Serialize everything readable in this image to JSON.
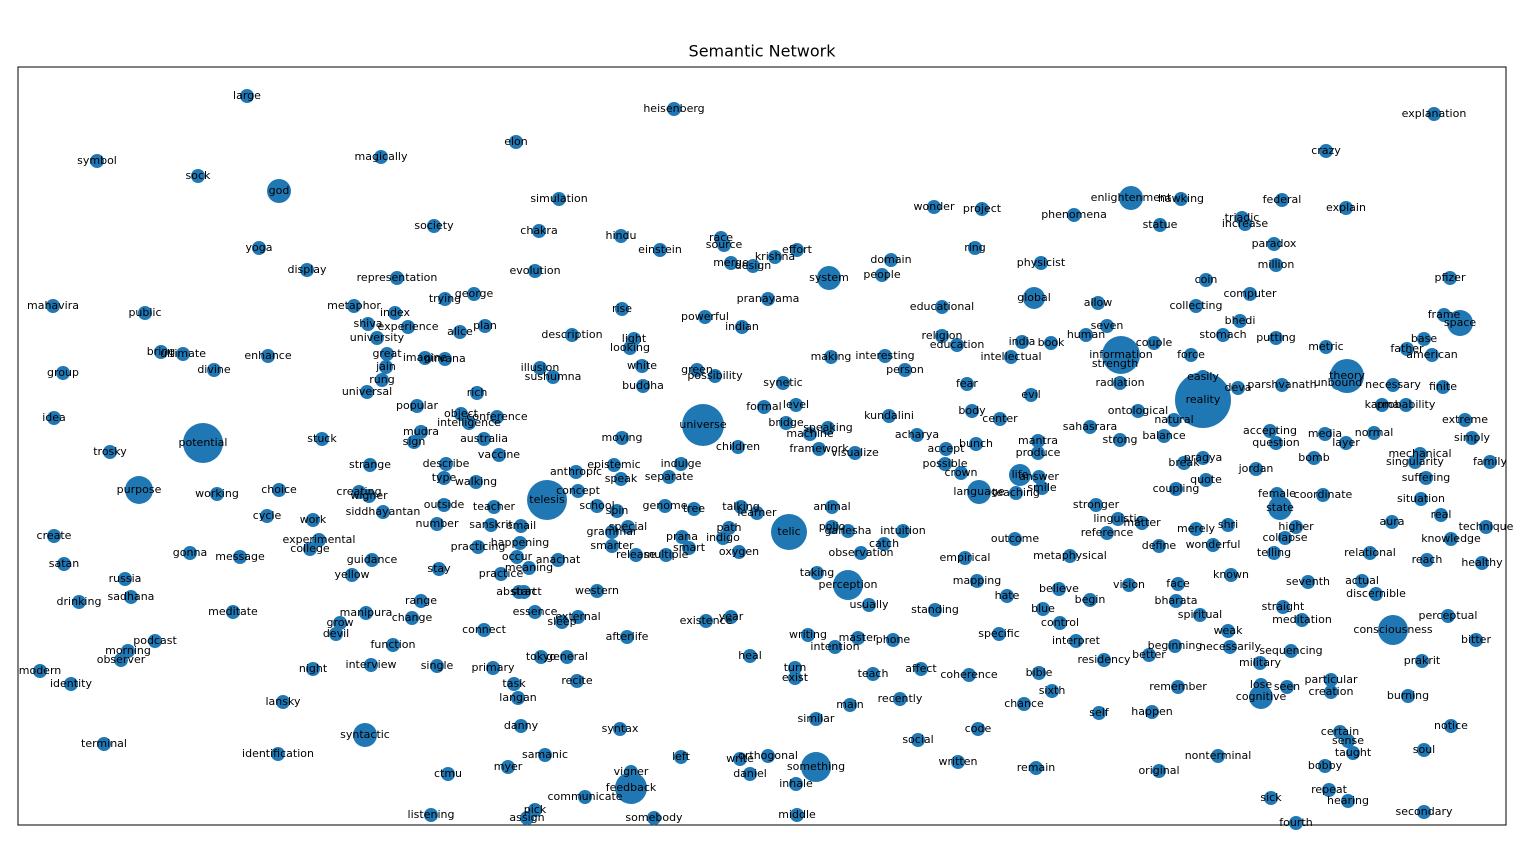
{
  "title": "Semantic Network",
  "nodes": [
    "potential",
    "universe",
    "telesis",
    "telic",
    "reality",
    "information",
    "god",
    "syntactic",
    "feedback",
    "something",
    "perception",
    "consciousness",
    "purpose",
    "system",
    "theory",
    "space",
    "enlightenment",
    "cognitive",
    "state",
    "language",
    "life",
    "global",
    "large",
    "symbol",
    "sock",
    "magically",
    "heisenberg",
    "elon",
    "simulation",
    "society",
    "chakra",
    "hindu",
    "race",
    "source",
    "einstein",
    "krishna",
    "effort",
    "merge",
    "design",
    "evolution",
    "representation",
    "yoga",
    "display",
    "mahavira",
    "public",
    "metaphor",
    "index",
    "trying",
    "george",
    "rise",
    "pranayama",
    "powerful",
    "indian",
    "shiva",
    "experience",
    "university",
    "alice",
    "plan",
    "description",
    "light",
    "looking",
    "bring",
    "ultimate",
    "enhance",
    "great",
    "imagine",
    "nirvana",
    "divine",
    "group",
    "jain",
    "illusion",
    "sushumna",
    "white",
    "rung",
    "green",
    "possibility",
    "universal",
    "rich",
    "buddha",
    "popular",
    "object",
    "conference",
    "intelligence",
    "idea",
    "mudra",
    "sign",
    "australia",
    "stuck",
    "vaccine",
    "moving",
    "children",
    "trosky",
    "strange",
    "describe",
    "type",
    "walking",
    "anthropic",
    "epistemic",
    "indulge",
    "separate",
    "speak",
    "concept",
    "working",
    "choice",
    "creating",
    "wigner",
    "outside",
    "school",
    "genome",
    "tree",
    "talking",
    "learner",
    "animal",
    "siddhayantan",
    "teacher",
    "cycle",
    "work",
    "email",
    "sanskrit",
    "number",
    "create",
    "experimental",
    "college",
    "practicing",
    "happening",
    "spin",
    "special",
    "grammar",
    "smarter",
    "release",
    "multiple",
    "prana",
    "smart",
    "indigo",
    "path",
    "oxygen",
    "gonna",
    "message",
    "guidance",
    "satan",
    "stay",
    "occur",
    "anachat",
    "meaning",
    "practice",
    "yellow",
    "russia",
    "sadhana",
    "drinking",
    "meditate",
    "range",
    "abstract",
    "start",
    "western",
    "essence",
    "external",
    "sleep",
    "change",
    "manipura",
    "grow",
    "devil",
    "connect",
    "afterlife",
    "existence",
    "year",
    "function",
    "podcast",
    "morning",
    "observer",
    "modern",
    "identity",
    "night",
    "interview",
    "single",
    "primary",
    "tokyo",
    "general",
    "task",
    "recite",
    "langan",
    "heal",
    "turn",
    "exist",
    "lansky",
    "danny",
    "syntax",
    "terminal",
    "identification",
    "samanic",
    "left",
    "write",
    "orthogonal",
    "ctmu",
    "myer",
    "vigner",
    "daniel",
    "inhale",
    "communicate",
    "listening",
    "pick",
    "assign",
    "somebody",
    "middle",
    "wonder",
    "project",
    "phenomena",
    "hawking",
    "statue",
    "triadic",
    "increase",
    "federal",
    "explain",
    "crazy",
    "explanation",
    "domain",
    "ring",
    "physicist",
    "people",
    "paradox",
    "million",
    "coin",
    "computer",
    "pfizer",
    "educational",
    "allow",
    "collecting",
    "bhedi",
    "frame",
    "making",
    "interesting",
    "religion",
    "education",
    "india",
    "book",
    "human",
    "seven",
    "couple",
    "stomach",
    "putting",
    "metric",
    "base",
    "father",
    "person",
    "intellectual",
    "strength",
    "force",
    "american",
    "fear",
    "radiation",
    "easily",
    "parshvanath",
    "unbound",
    "necessary",
    "finite",
    "evil",
    "deva",
    "kundalini",
    "body",
    "center",
    "sahasrara",
    "ontological",
    "natural",
    "karma",
    "probability",
    "extreme",
    "accepting",
    "acharya",
    "media",
    "normal",
    "mantra",
    "strong",
    "balance",
    "question",
    "layer",
    "simply",
    "produce",
    "mechanical",
    "accept",
    "bunch",
    "possible",
    "crown",
    "break",
    "pragya",
    "jordan",
    "bomb",
    "singularity",
    "family",
    "answer",
    "smile",
    "coupling",
    "quote",
    "suffering",
    "teaching",
    "female",
    "coordinate",
    "situation",
    "stronger",
    "linguistic",
    "matter",
    "real",
    "merely",
    "shri",
    "higher",
    "aura",
    "technique",
    "reference",
    "define",
    "wonderful",
    "collapse",
    "knowledge",
    "telling",
    "relational",
    "healthy",
    "outcome",
    "metaphysical",
    "reach",
    "empirical",
    "mapping",
    "seventh",
    "actual",
    "discernible",
    "vision",
    "face",
    "bharata",
    "hate",
    "believe",
    "begin",
    "known",
    "straight",
    "spiritual",
    "meditation",
    "perceptual",
    "blue",
    "control",
    "weak",
    "specific",
    "interpret",
    "beginning",
    "necessarily",
    "sequencing",
    "better",
    "bitter",
    "residency",
    "military",
    "prakrit",
    "particular",
    "remember",
    "lose",
    "seen",
    "creation",
    "burning",
    "bible",
    "sixth",
    "chance",
    "self",
    "happen",
    "notice",
    "certain",
    "sense",
    "taught",
    "soul",
    "code",
    "bobby",
    "nonterminal",
    "original",
    "remain",
    "sick",
    "repeat",
    "hearing",
    "secondary",
    "fourth",
    "taking",
    "usually",
    "standing",
    "writing",
    "master",
    "intention",
    "phone",
    "affect",
    "teach",
    "coherence",
    "main",
    "recently",
    "similar",
    "social",
    "written",
    "polio",
    "ganesha",
    "intuition",
    "catch",
    "observation",
    "synetic",
    "formal",
    "level",
    "bridge",
    "speaking",
    "machine",
    "framework",
    "visualize"
  ]
}
